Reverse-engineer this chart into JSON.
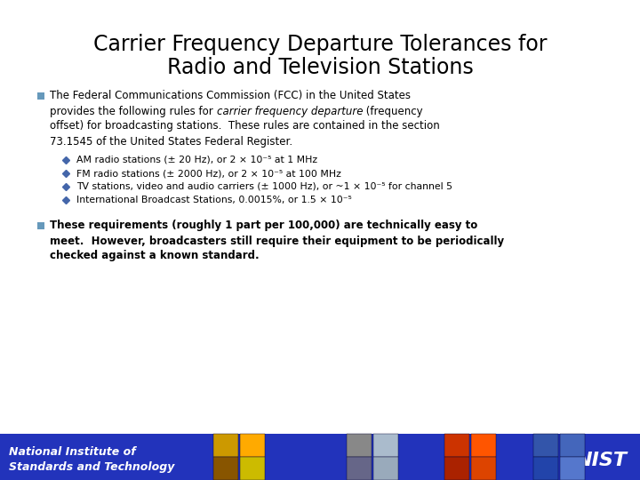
{
  "title_line1": "Carrier Frequency Departure Tolerances for",
  "title_line2": "Radio and Television Stations",
  "bg_color": "#FFFFFF",
  "footer_bg_color": "#2233BB",
  "footer_text_color": "#FFFFFF",
  "bullet_sq_color": "#6699BB",
  "diamond_color": "#4466AA",
  "title_font_size": 17,
  "body_font_size": 8.5,
  "sub_font_size": 7.8,
  "bullet1_line1": "The Federal Communications Commission (FCC) in the United States",
  "bullet1_line2a": "provides the following rules for ",
  "bullet1_line2b": "carrier frequency departure",
  "bullet1_line2c": " (frequency",
  "bullet1_line3": "offset) for broadcasting stations.  These rules are contained in the section",
  "bullet1_line4": "73.1545 of the United States Federal Register.",
  "sub_bullets": [
    "AM radio stations (± 20 Hz), or 2 × 10⁻⁵ at 1 MHz",
    "FM radio stations (± 2000 Hz), or 2 × 10⁻⁵ at 100 MHz",
    "TV stations, video and audio carriers (± 1000 Hz), or ~1 × 10⁻⁵ for channel 5",
    "International Broadcast Stations, 0.0015%, or 1.5 × 10⁻⁵"
  ],
  "bullet2_line1": "These requirements (roughly 1 part per 100,000) are technically easy to",
  "bullet2_line2": "meet.  However, broadcasters still require their equipment to be periodically",
  "bullet2_line3": "checked against a known standard."
}
